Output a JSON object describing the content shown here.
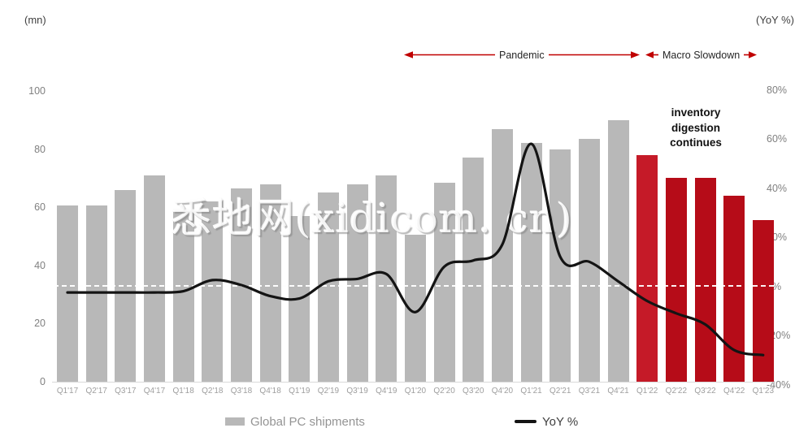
{
  "header": {
    "left_unit": "(mn)",
    "right_unit": "(YoY %)"
  },
  "annotations": {
    "pandemic_label": "Pandemic",
    "macro_label": "Macro Slowdown",
    "inventory_note": {
      "line1": "inventory",
      "line2": "digestion",
      "line3": "continues"
    }
  },
  "watermark_text": "悉地网(xidicom. cn)",
  "legend": {
    "bars_label": "Global PC shipments",
    "line_label": "YoY %"
  },
  "colors": {
    "bar_gray": "#b8b8b8",
    "bar_red_first": "#c51a28",
    "bar_red": "#b60c18",
    "arrow_red": "#c00000",
    "line_black": "#141414",
    "tick_gray": "#808080",
    "xlabel_gray": "#9e9e9e"
  },
  "chart_data": {
    "type": "bar+line combo",
    "title": "",
    "categories": [
      "Q1'17",
      "Q2'17",
      "Q3'17",
      "Q4'17",
      "Q1'18",
      "Q2'18",
      "Q3'18",
      "Q4'18",
      "Q1'19",
      "Q2'19",
      "Q3'19",
      "Q4'19",
      "Q1'20",
      "Q2'20",
      "Q3'20",
      "Q4'20",
      "Q1'21",
      "Q2'21",
      "Q3'21",
      "Q4'21",
      "Q1'22",
      "Q2'22",
      "Q3'22",
      "Q4'22",
      "Q1'23"
    ],
    "series": [
      {
        "name": "Global PC shipments",
        "type": "bar",
        "axis": "left",
        "unit": "mn",
        "values": [
          60.5,
          60.5,
          66,
          71,
          59.5,
          62,
          66.5,
          68,
          57,
          65,
          68,
          71,
          50.5,
          68.5,
          77,
          87,
          82,
          80,
          83.5,
          90,
          78,
          70,
          70,
          64,
          55.5
        ]
      },
      {
        "name": "YoY %",
        "type": "line",
        "axis": "right",
        "unit": "%",
        "values": [
          -2.5,
          -2.5,
          -2.5,
          -2.5,
          -2,
          2.5,
          0.5,
          -4,
          -5,
          2,
          3,
          5,
          -10.5,
          8,
          10.5,
          17,
          58,
          12,
          10,
          2,
          -6,
          -11,
          -15.5,
          -26,
          -28
        ]
      }
    ],
    "left_axis": {
      "title": "(mn)",
      "ticks": [
        100,
        80,
        60,
        40,
        20,
        0
      ],
      "range": [
        0,
        100
      ]
    },
    "right_axis": {
      "title": "(YoY %)",
      "ticks": [
        "80%",
        "60%",
        "40%",
        "20%",
        "0%",
        "-20%",
        "-40%"
      ],
      "range": [
        -40,
        80
      ]
    },
    "grid": "single dashed zero line on right axis",
    "legend_position": "bottom",
    "highlight_start_index": 20,
    "highlight_start_category": "Q1'22",
    "annotation_regions": [
      "Pandemic (Q1'20 - Q4'21)",
      "Macro Slowdown (Q1'22 - Q1'23)"
    ]
  }
}
